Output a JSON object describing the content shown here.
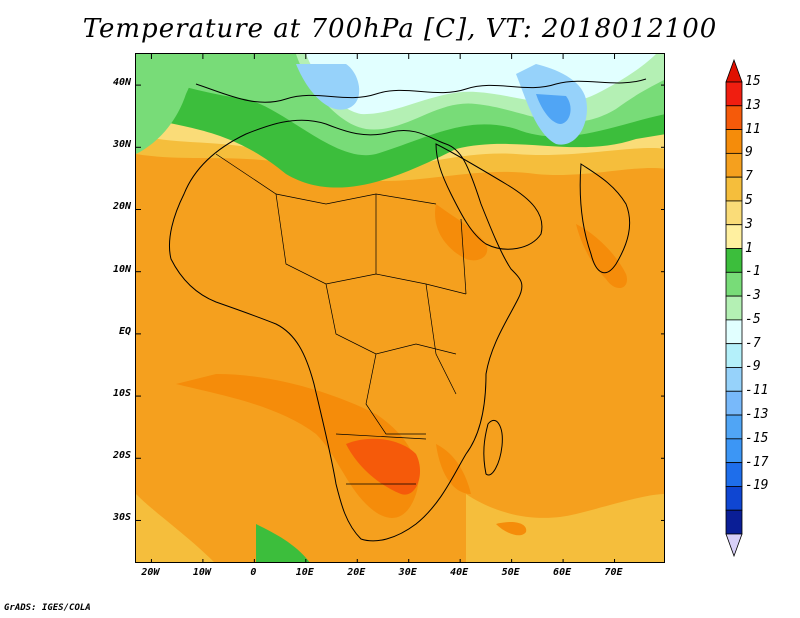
{
  "title": "Temperature at 700hPa [C], VT: 2018012100",
  "footer": "GrADS: IGES/COLA",
  "map": {
    "lon_range": [
      -23,
      80
    ],
    "lat_range": [
      -37,
      45
    ],
    "lat_ticks": [
      {
        "value": 40,
        "label": "40N"
      },
      {
        "value": 30,
        "label": "30N"
      },
      {
        "value": 20,
        "label": "20N"
      },
      {
        "value": 10,
        "label": "10N"
      },
      {
        "value": 0,
        "label": "EQ"
      },
      {
        "value": -10,
        "label": "10S"
      },
      {
        "value": -20,
        "label": "20S"
      },
      {
        "value": -30,
        "label": "30S"
      }
    ],
    "lon_ticks": [
      {
        "value": -20,
        "label": "20W"
      },
      {
        "value": -10,
        "label": "10W"
      },
      {
        "value": 0,
        "label": "0"
      },
      {
        "value": 10,
        "label": "10E"
      },
      {
        "value": 20,
        "label": "20E"
      },
      {
        "value": 30,
        "label": "30E"
      },
      {
        "value": 40,
        "label": "40E"
      },
      {
        "value": 50,
        "label": "50E"
      },
      {
        "value": 60,
        "label": "60E"
      },
      {
        "value": 70,
        "label": "70E"
      }
    ]
  },
  "colorbar": {
    "labels": [
      "15",
      "13",
      "11",
      "9",
      "7",
      "5",
      "3",
      "1",
      "-1",
      "-3",
      "-5",
      "-7",
      "-9",
      "-11",
      "-13",
      "-15",
      "-17",
      "-19"
    ],
    "colors_top_to_bottom": [
      "#f01e10",
      "#f55a0a",
      "#f58c0a",
      "#f5a01e",
      "#f5be3c",
      "#fadc78",
      "#fff0a0",
      "#3cbe3c",
      "#78dc78",
      "#b4f0b4",
      "#e1ffff",
      "#b4f0fa",
      "#96d2fa",
      "#78b9fa",
      "#50a5f5",
      "#3c96f5",
      "#1e6eeb",
      "#0f46d2",
      "#0a1e96"
    ],
    "end_colors": {
      "top": "#e01000",
      "bottom": "#d8d0f8"
    }
  }
}
